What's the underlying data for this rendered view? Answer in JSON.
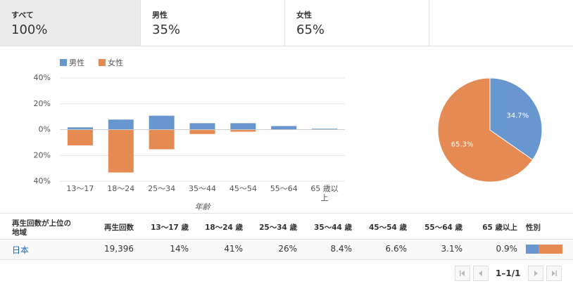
{
  "tabs": [
    {
      "label": "すべて",
      "value": "100%"
    },
    {
      "label": "男性",
      "value": "35%"
    },
    {
      "label": "女性",
      "value": "65%"
    }
  ],
  "chart_data": [
    {
      "type": "bar",
      "x_label": "年齢",
      "categories": [
        "13～17",
        "18～24",
        "25～34",
        "35～44",
        "45～54",
        "55～64",
        "65 歳以上"
      ],
      "series": [
        {
          "name": "男性",
          "color": "#6897d0",
          "values": [
            1.8,
            7.8,
            10.8,
            5,
            5,
            2.8,
            0.7
          ]
        },
        {
          "name": "女性",
          "color": "#e58a52",
          "values": [
            -12.2,
            -33.2,
            -15.2,
            -3.4,
            -1.6,
            -0.3,
            -0.2
          ]
        }
      ],
      "ylim": [
        -40,
        40
      ],
      "yticks": [
        {
          "value": 40,
          "label": "40%"
        },
        {
          "value": 20,
          "label": "20%"
        },
        {
          "value": 0,
          "label": "0%"
        },
        {
          "value": -20,
          "label": "20%"
        },
        {
          "value": -40,
          "label": "40%"
        }
      ],
      "grid": true
    },
    {
      "type": "pie",
      "values": [
        34.7,
        65.3
      ],
      "value_labels": [
        "34.7%",
        "65.3%"
      ],
      "colors": [
        "#6897d0",
        "#e58a52"
      ]
    }
  ],
  "table": {
    "header": [
      "再生回数が上位の地域",
      "再生回数",
      "13～17 歳",
      "18～24 歳",
      "25～34 歳",
      "35～44 歳",
      "45～54 歳",
      "55～64 歳",
      "65 歳以上",
      "性別"
    ],
    "rows": [
      [
        "日本",
        "19,396",
        "14%",
        "41%",
        "26%",
        "8.4%",
        "6.6%",
        "3.1%",
        "0.9%"
      ]
    ]
  },
  "pagination": "1–1/1"
}
